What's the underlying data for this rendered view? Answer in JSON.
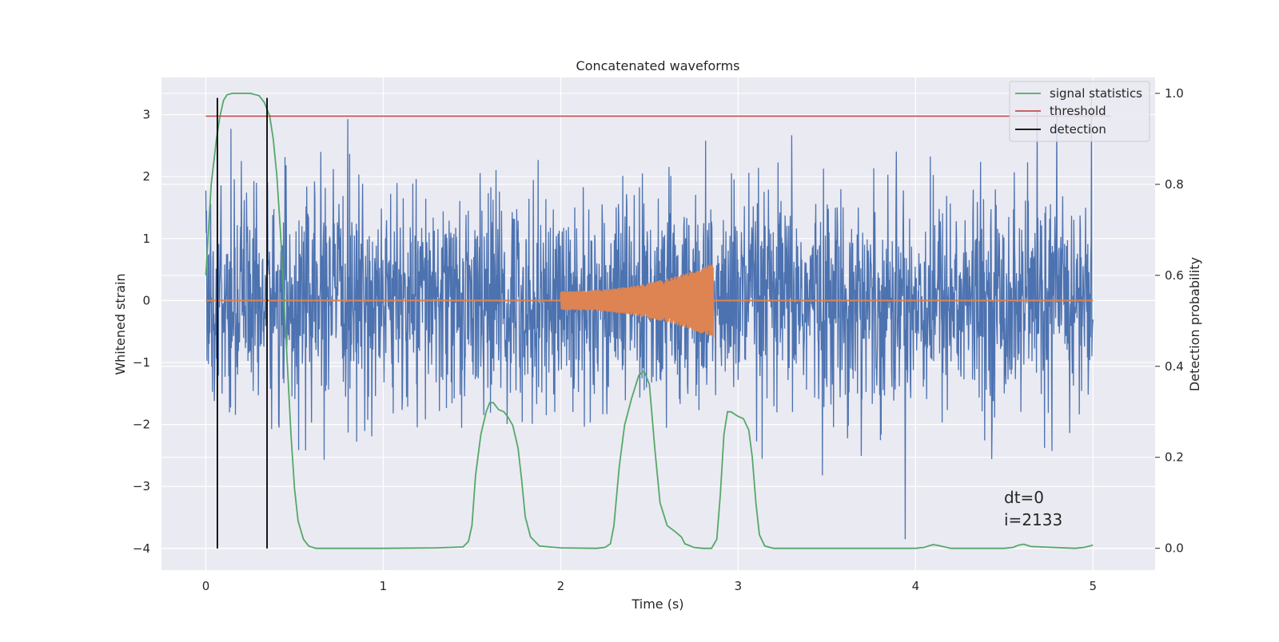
{
  "chart_data": {
    "type": "line",
    "title": "Concatenated waveforms",
    "xlabel": "Time (s)",
    "ylabel": "Whitened strain",
    "y2label": "Detection probability",
    "xlim": [
      -0.25,
      5.35
    ],
    "ylim": [
      -4.35,
      3.6
    ],
    "y2lim": [
      -0.048,
      1.035
    ],
    "xticks": [
      0,
      1,
      2,
      3,
      4,
      5
    ],
    "yticks": [
      -4,
      -3,
      -2,
      -1,
      0,
      1,
      2,
      3
    ],
    "y2ticks": [
      0.0,
      0.2,
      0.4,
      0.6,
      0.8,
      1.0
    ],
    "grid": true,
    "background": "#eaeaf2",
    "legend_position": "top-right",
    "legend": [
      {
        "label": "signal statistics",
        "color": "#55a868"
      },
      {
        "label": "threshold",
        "color": "#c44e52"
      },
      {
        "label": "detection",
        "color": "#000000"
      }
    ],
    "series": [
      {
        "role": "noise",
        "color": "#4c72b0",
        "x_range": [
          0,
          5
        ],
        "amplitude_std": 0.85,
        "peak_max": 3.3,
        "peak_min": -3.85
      },
      {
        "role": "chirp",
        "color": "#dd8452",
        "x_range": [
          2.0,
          2.86
        ],
        "amp_start": 0.15,
        "amp_end": 0.6
      },
      {
        "name": "signal statistics",
        "color": "#55a868",
        "x": [
          0,
          0.03,
          0.06,
          0.08,
          0.1,
          0.12,
          0.15,
          0.2,
          0.25,
          0.3,
          0.33,
          0.36,
          0.38,
          0.4,
          0.42,
          0.44,
          0.46,
          0.48,
          0.5,
          0.52,
          0.55,
          0.58,
          0.62,
          1.0,
          1.3,
          1.45,
          1.48,
          1.5,
          1.52,
          1.55,
          1.58,
          1.6,
          1.62,
          1.65,
          1.68,
          1.7,
          1.73,
          1.76,
          1.78,
          1.8,
          1.83,
          1.88,
          2.0,
          2.2,
          2.25,
          2.28,
          2.3,
          2.33,
          2.36,
          2.4,
          2.44,
          2.47,
          2.5,
          2.53,
          2.56,
          2.6,
          2.65,
          2.68,
          2.7,
          2.75,
          2.8,
          2.85,
          2.88,
          2.9,
          2.92,
          2.94,
          2.96,
          2.98,
          3.0,
          3.03,
          3.06,
          3.08,
          3.1,
          3.12,
          3.15,
          3.2,
          3.5,
          4.0,
          4.05,
          4.08,
          4.1,
          4.13,
          4.2,
          4.5,
          4.55,
          4.58,
          4.61,
          4.65,
          4.9,
          4.95,
          5.0
        ],
        "y": [
          0.6,
          0.8,
          0.9,
          0.95,
          0.985,
          0.997,
          1.0,
          1.0,
          1.0,
          0.995,
          0.98,
          0.95,
          0.9,
          0.82,
          0.7,
          0.55,
          0.4,
          0.25,
          0.13,
          0.06,
          0.02,
          0.005,
          0.0,
          0.0,
          0.001,
          0.003,
          0.015,
          0.05,
          0.16,
          0.25,
          0.3,
          0.32,
          0.32,
          0.305,
          0.3,
          0.29,
          0.27,
          0.22,
          0.15,
          0.07,
          0.025,
          0.005,
          0.001,
          0.0,
          0.002,
          0.01,
          0.05,
          0.18,
          0.27,
          0.33,
          0.38,
          0.39,
          0.36,
          0.22,
          0.1,
          0.05,
          0.035,
          0.025,
          0.01,
          0.002,
          0.0,
          0.0,
          0.02,
          0.12,
          0.25,
          0.3,
          0.3,
          0.295,
          0.29,
          0.285,
          0.26,
          0.2,
          0.1,
          0.03,
          0.005,
          0.0,
          0.0,
          0.0,
          0.002,
          0.006,
          0.008,
          0.006,
          0.0,
          0.0,
          0.002,
          0.007,
          0.009,
          0.004,
          0.0,
          0.002,
          0.007
        ]
      },
      {
        "name": "threshold",
        "color": "#c44e52",
        "axis": "y2",
        "x": [
          0,
          5.1
        ],
        "y": [
          0.95,
          0.95
        ]
      },
      {
        "name": "detection",
        "color": "#000000",
        "type": "vlines",
        "x": [
          0.065,
          0.345
        ],
        "ylim": [
          -4.0,
          3.27
        ]
      }
    ],
    "annotations": [
      {
        "text": "dt=0"
      },
      {
        "text": "i=2133"
      }
    ]
  }
}
